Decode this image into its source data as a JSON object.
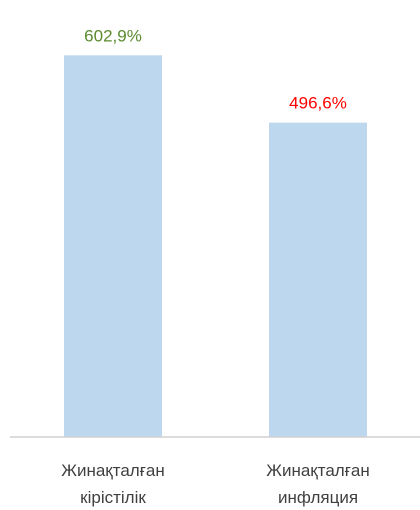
{
  "chart_data": {
    "type": "bar",
    "categories": [
      [
        "Жинақталған",
        "кірістілік"
      ],
      [
        "Жинақталған",
        "инфляция"
      ]
    ],
    "values": [
      602.9,
      496.6
    ],
    "value_labels": [
      "602,9%",
      "496,6%"
    ],
    "label_colors": [
      "#5b8a2d",
      "#ff0000"
    ],
    "bar_color": "#bdd7ee",
    "axis_color": "#d0d0d0",
    "category_label_color": "#404040",
    "ylim": [
      0,
      635
    ],
    "title": "",
    "xlabel": "",
    "ylabel": "",
    "grid": false,
    "legend": "none"
  }
}
